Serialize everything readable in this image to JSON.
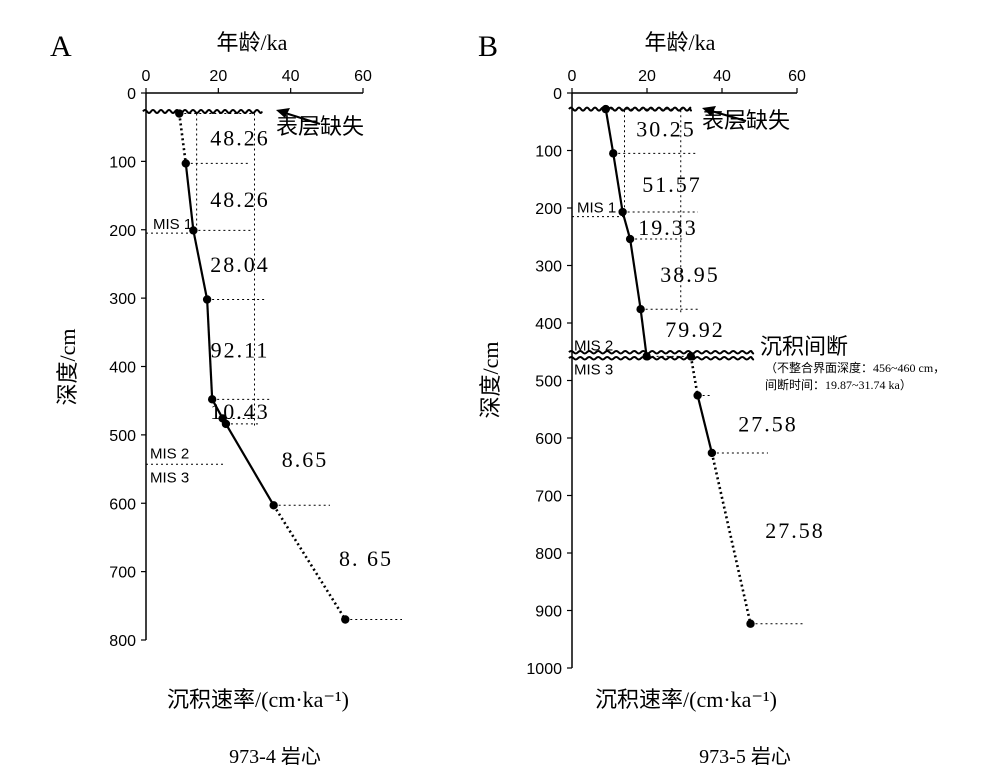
{
  "panels": [
    {
      "letter": "A",
      "top_label": "年龄/ka",
      "left_label": "深度/cm",
      "bottom_label": "沉积速率/(cm·ka⁻¹)",
      "caption": "973-4 岩心",
      "x_ticks": [
        "0",
        "20",
        "40",
        "60"
      ],
      "y_ticks": [
        "0",
        "100",
        "200",
        "300",
        "400",
        "500",
        "600",
        "700",
        "800"
      ],
      "surface_label": "表层缺失"
    },
    {
      "letter": "B",
      "top_label": "年龄/ka",
      "left_label": "深度/cm",
      "bottom_label": "沉积速率/(cm·ka⁻¹)",
      "caption": "973-5 岩心",
      "x_ticks": [
        "0",
        "20",
        "40",
        "60"
      ],
      "y_ticks": [
        "0",
        "100",
        "200",
        "300",
        "400",
        "500",
        "600",
        "700",
        "800",
        "900",
        "1000"
      ],
      "surface_label": "表层缺失",
      "hiatus_label": "沉积间断",
      "hiatus_note_1": "（不整合界面深度：456~460 cm，",
      "hiatus_note_2": "间断时间：19.87~31.74 ka）"
    }
  ],
  "chart_data": [
    {
      "type": "line",
      "panel": "A",
      "x_axis": {
        "label": "年龄/ka",
        "range": [
          0,
          60
        ],
        "position": "top"
      },
      "y_axis": {
        "label": "深度/cm",
        "range": [
          0,
          800
        ],
        "inverted": true
      },
      "points": [
        {
          "age": 9.2,
          "depth": 30
        },
        {
          "age": 11.0,
          "depth": 103
        },
        {
          "age": 13.1,
          "depth": 201
        },
        {
          "age": 16.9,
          "depth": 302
        },
        {
          "age": 18.3,
          "depth": 448
        },
        {
          "age": 21.2,
          "depth": 476
        },
        {
          "age": 22.1,
          "depth": 484
        },
        {
          "age": 35.3,
          "depth": 603
        },
        {
          "age": 55.1,
          "depth": 770
        }
      ],
      "segment_styles": [
        "dotted",
        "solid",
        "solid",
        "solid",
        "solid",
        "solid",
        "solid",
        "dotted"
      ],
      "rates": [
        {
          "label": "48.26",
          "depth": 65
        },
        {
          "label": "48.26",
          "depth": 155
        },
        {
          "label": "28.04",
          "depth": 250
        },
        {
          "label": "92.11",
          "depth": 375
        },
        {
          "label": "10.43",
          "depth": 465
        },
        {
          "label": "8.65",
          "depth": 535
        },
        {
          "label": "8. 65",
          "depth": 680
        }
      ],
      "mis_boundaries": [
        {
          "labels": [
            "MIS 1"
          ],
          "depth": 205
        },
        {
          "labels": [
            "MIS 2",
            "MIS 3"
          ],
          "depth": 543
        }
      ],
      "surface_missing_depth": 27
    },
    {
      "type": "line",
      "panel": "B",
      "x_axis": {
        "label": "年龄/ka",
        "range": [
          0,
          60
        ],
        "position": "top"
      },
      "y_axis": {
        "label": "深度/cm",
        "range": [
          0,
          1000
        ],
        "inverted": true
      },
      "points": [
        {
          "age": 9.0,
          "depth": 28
        },
        {
          "age": 11.0,
          "depth": 105
        },
        {
          "age": 13.5,
          "depth": 207
        },
        {
          "age": 15.5,
          "depth": 254
        },
        {
          "age": 18.3,
          "depth": 376
        },
        {
          "age": 19.9,
          "depth": 458
        },
        {
          "age": 31.7,
          "depth": 458
        },
        {
          "age": 33.5,
          "depth": 526
        },
        {
          "age": 37.3,
          "depth": 626
        },
        {
          "age": 47.6,
          "depth": 923
        }
      ],
      "segment_styles": [
        "solid",
        "solid",
        "solid",
        "solid",
        "solid",
        "none",
        "dotted",
        "solid",
        "dotted"
      ],
      "rates": [
        {
          "label": "30.25",
          "depth": 62
        },
        {
          "label": "51.57",
          "depth": 158
        },
        {
          "label": "19.33",
          "depth": 233
        },
        {
          "label": "38.95",
          "depth": 315
        },
        {
          "label": "79.92",
          "depth": 410
        },
        {
          "label": "27.58",
          "depth": 575
        },
        {
          "label": "27.58",
          "depth": 760
        }
      ],
      "mis_boundaries": [
        {
          "labels": [
            "MIS 1"
          ],
          "depth": 215
        },
        {
          "labels": [
            "MIS 2",
            "MIS 3"
          ],
          "depth": 458
        }
      ],
      "surface_missing_depth": 28,
      "hiatus": {
        "depth_range": [
          456,
          460
        ],
        "age_range": [
          19.87,
          31.74
        ]
      }
    }
  ]
}
